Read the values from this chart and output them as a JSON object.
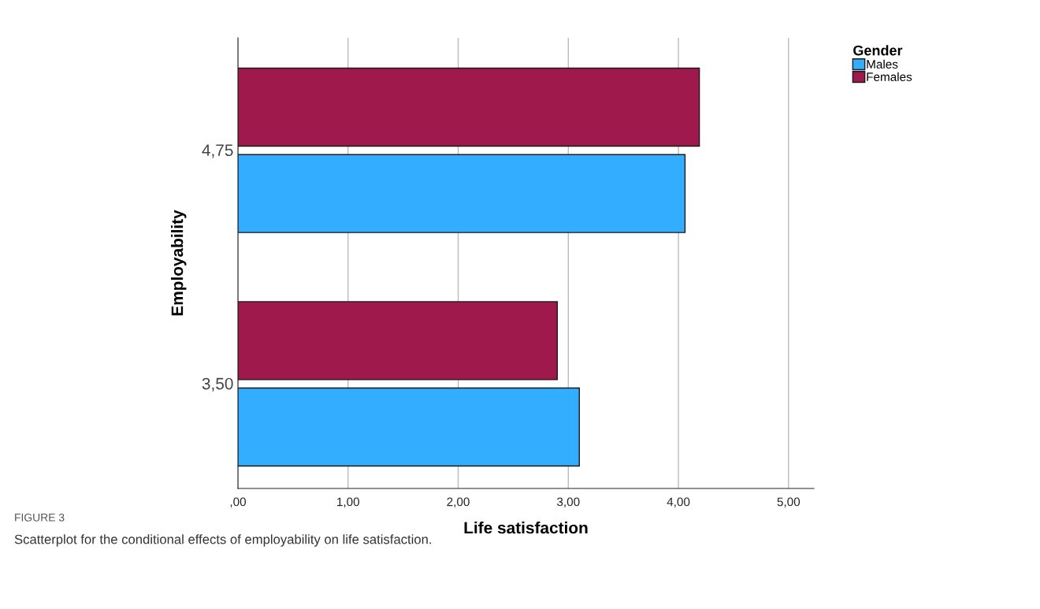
{
  "chart_data": {
    "type": "bar",
    "orientation": "horizontal",
    "xlabel": "Life satisfaction",
    "ylabel": "Employability",
    "legend_title": "Gender",
    "categories": [
      "4,75",
      "3,50"
    ],
    "series": [
      {
        "name": "Males",
        "color": "#33adff",
        "values": [
          4.06,
          3.1
        ]
      },
      {
        "name": "Females",
        "color": "#a0194c",
        "values": [
          4.19,
          2.9
        ]
      }
    ],
    "xlim": [
      0,
      5.23
    ],
    "xticks": [
      {
        "value": 0,
        "label": ",00"
      },
      {
        "value": 1,
        "label": "1,00"
      },
      {
        "value": 2,
        "label": "2,00"
      },
      {
        "value": 3,
        "label": "3,00"
      },
      {
        "value": 4,
        "label": "4,00"
      },
      {
        "value": 5,
        "label": "5,00"
      }
    ],
    "grid": "x",
    "legend": "top right",
    "annotations": [
      "FIGURE 3",
      "Scatterplot for the conditional effects of employability on life satisfaction."
    ]
  }
}
